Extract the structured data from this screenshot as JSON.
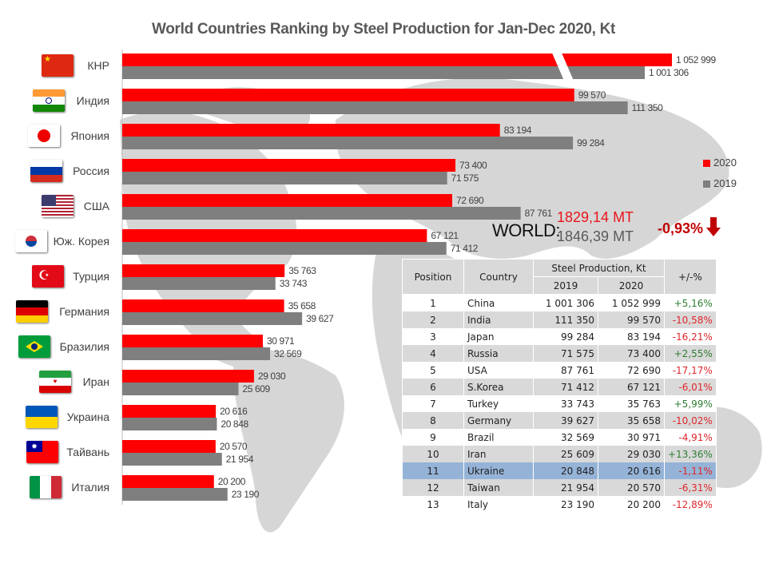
{
  "title": "World Countries Ranking by Steel Production for Jan-Dec 2020,  Kt",
  "colors": {
    "y2020": "#ff0000",
    "y2019": "#7f7f7f",
    "positive": "#2e7d32",
    "negative": "#e0262b",
    "highlight": "#95b3d7",
    "header": "#d9d9d9",
    "map": "#d6d6d6"
  },
  "legend": [
    {
      "label": "2020",
      "color": "#ff0000"
    },
    {
      "label": "2019",
      "color": "#7f7f7f"
    }
  ],
  "world": {
    "label": "WORLD:",
    "value_2020": "1829,14 MT",
    "value_2019": "1846,39 MT",
    "change": "-0,93%",
    "change_icon": "arrow-down-icon"
  },
  "chart_data": {
    "type": "bar",
    "orientation": "horizontal",
    "title": "World Countries Ranking by Steel Production for Jan-Dec 2020,  Kt",
    "xlabel": "",
    "ylabel": "",
    "axis_break": "China bars truncated (broken axis)",
    "categories": [
      "КНР",
      "Индия",
      "Япония",
      "Россия",
      "США",
      "Юж. Корея",
      "Турция",
      "Германия",
      "Бразилия",
      "Иран",
      "Украина",
      "Тайвань",
      "Италия"
    ],
    "flags": [
      "china-flag-icon",
      "india-flag-icon",
      "japan-flag-icon",
      "russia-flag-icon",
      "usa-flag-icon",
      "south-korea-flag-icon",
      "turkey-flag-icon",
      "germany-flag-icon",
      "brazil-flag-icon",
      "iran-flag-icon",
      "ukraine-flag-icon",
      "taiwan-flag-icon",
      "italy-flag-icon"
    ],
    "series": [
      {
        "name": "2020",
        "color": "#ff0000",
        "values": [
          1052999,
          99570,
          83194,
          73400,
          72690,
          67121,
          35763,
          35658,
          30971,
          29030,
          20616,
          20570,
          20200
        ],
        "labels": [
          "1 052 999",
          "99 570",
          "83 194",
          "73 400",
          "72 690",
          "67 121",
          "35 763",
          "35 658",
          "30 971",
          "29 030",
          "20 616",
          "20 570",
          "20 200"
        ]
      },
      {
        "name": "2019",
        "color": "#7f7f7f",
        "values": [
          1001306,
          111350,
          99284,
          71575,
          87761,
          71412,
          33743,
          39627,
          32569,
          25609,
          20848,
          21954,
          23190
        ],
        "labels": [
          "1 001 306",
          "111 350",
          "99 284",
          "71 575",
          "87 761",
          "71 412",
          "33 743",
          "39 627",
          "32 569",
          "25 609",
          "20 848",
          "21 954",
          "23 190"
        ]
      }
    ],
    "legend_position": "right"
  },
  "table": {
    "headers": {
      "position": "Position",
      "country": "Country",
      "group": "Steel Production,  Kt",
      "y2019": "2019",
      "y2020": "2020",
      "change": "+/-%"
    },
    "rows": [
      {
        "pos": "1",
        "country": "China",
        "y2019": "1 001 306",
        "y2020": "1 052 999",
        "change": "+5,16%",
        "sign": "pos"
      },
      {
        "pos": "2",
        "country": "India",
        "y2019": "111 350",
        "y2020": "99 570",
        "change": "-10,58%",
        "sign": "neg"
      },
      {
        "pos": "3",
        "country": "Japan",
        "y2019": "99 284",
        "y2020": "83 194",
        "change": "-16,21%",
        "sign": "neg"
      },
      {
        "pos": "4",
        "country": "Russia",
        "y2019": "71 575",
        "y2020": "73 400",
        "change": "+2,55%",
        "sign": "pos"
      },
      {
        "pos": "5",
        "country": "USA",
        "y2019": "87 761",
        "y2020": "72 690",
        "change": "-17,17%",
        "sign": "neg"
      },
      {
        "pos": "6",
        "country": "S.Korea",
        "y2019": "71 412",
        "y2020": "67 121",
        "change": "-6,01%",
        "sign": "neg"
      },
      {
        "pos": "7",
        "country": "Turkey",
        "y2019": "33 743",
        "y2020": "35 763",
        "change": "+5,99%",
        "sign": "pos"
      },
      {
        "pos": "8",
        "country": "Germany",
        "y2019": "39 627",
        "y2020": "35 658",
        "change": "-10,02%",
        "sign": "neg"
      },
      {
        "pos": "9",
        "country": "Brazil",
        "y2019": "32 569",
        "y2020": "30 971",
        "change": "-4,91%",
        "sign": "neg"
      },
      {
        "pos": "10",
        "country": "Iran",
        "y2019": "25 609",
        "y2020": "29 030",
        "change": "+13,36%",
        "sign": "pos"
      },
      {
        "pos": "11",
        "country": "Ukraine",
        "y2019": "20 848",
        "y2020": "20 616",
        "change": "-1,11%",
        "sign": "neg",
        "highlight": true
      },
      {
        "pos": "12",
        "country": "Taiwan",
        "y2019": "21 954",
        "y2020": "20 570",
        "change": "-6,31%",
        "sign": "neg"
      },
      {
        "pos": "13",
        "country": "Italy",
        "y2019": "23 190",
        "y2020": "20 200",
        "change": "-12,89%",
        "sign": "neg"
      }
    ]
  }
}
